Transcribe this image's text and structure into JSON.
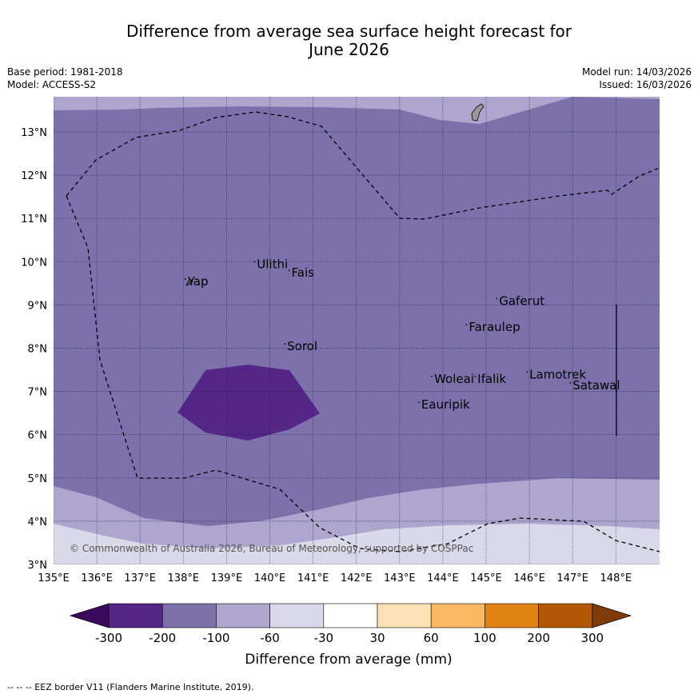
{
  "title": {
    "line1": "Difference from average sea surface height forecast for",
    "line2": "June 2026"
  },
  "meta": {
    "base_period": "Base period: 1981-2018",
    "model": "Model: ACCESS-S2",
    "model_run": "Model run: 14/03/2026",
    "issued": "Issued: 16/03/2026"
  },
  "map": {
    "lon_min": 135,
    "lon_max": 149,
    "lat_min": 3,
    "lat_max": 13.8,
    "lon_ticks": [
      "135°E",
      "136°E",
      "137°E",
      "138°E",
      "139°E",
      "140°E",
      "141°E",
      "142°E",
      "143°E",
      "144°E",
      "145°E",
      "146°E",
      "147°E",
      "148°E"
    ],
    "lat_ticks": [
      "3°N",
      "4°N",
      "5°N",
      "6°N",
      "7°N",
      "8°N",
      "9°N",
      "10°N",
      "11°N",
      "12°N",
      "13°N"
    ],
    "places": [
      {
        "name": "Yap",
        "lon": 138.1,
        "lat": 9.45
      },
      {
        "name": "Ulithi",
        "lon": 139.7,
        "lat": 9.85
      },
      {
        "name": "Fais",
        "lon": 140.5,
        "lat": 9.65
      },
      {
        "name": "Sorol",
        "lon": 140.4,
        "lat": 7.95
      },
      {
        "name": "Gaferut",
        "lon": 145.3,
        "lat": 9.0
      },
      {
        "name": "Faraulep",
        "lon": 144.6,
        "lat": 8.4
      },
      {
        "name": "Woleai",
        "lon": 143.8,
        "lat": 7.2
      },
      {
        "name": "Ifalik",
        "lon": 144.8,
        "lat": 7.2
      },
      {
        "name": "Lamotrek",
        "lon": 146.0,
        "lat": 7.3
      },
      {
        "name": "Satawal",
        "lon": 147.0,
        "lat": 7.05
      },
      {
        "name": "Eauripik",
        "lon": 143.5,
        "lat": 6.6
      }
    ],
    "copyright": "© Commonwealth of Australia 2026, Bureau of Meteorology, supported by COSPPac"
  },
  "colorbar": {
    "bins": [
      "#3a0a5c",
      "#542688",
      "#7d71ab",
      "#aea6cf",
      "#d9d9e9",
      "#ffffff",
      "#fee0b6",
      "#fdb863",
      "#e08214",
      "#b35806",
      "#7f3b08"
    ],
    "ticks": [
      "-300",
      "-200",
      "-100",
      "-60",
      "-30",
      "30",
      "60",
      "100",
      "200",
      "300"
    ],
    "label": "Difference from average (mm)"
  },
  "footer": "--  --  -- EEZ border V11 (Flanders Marine Institute, 2019)."
}
